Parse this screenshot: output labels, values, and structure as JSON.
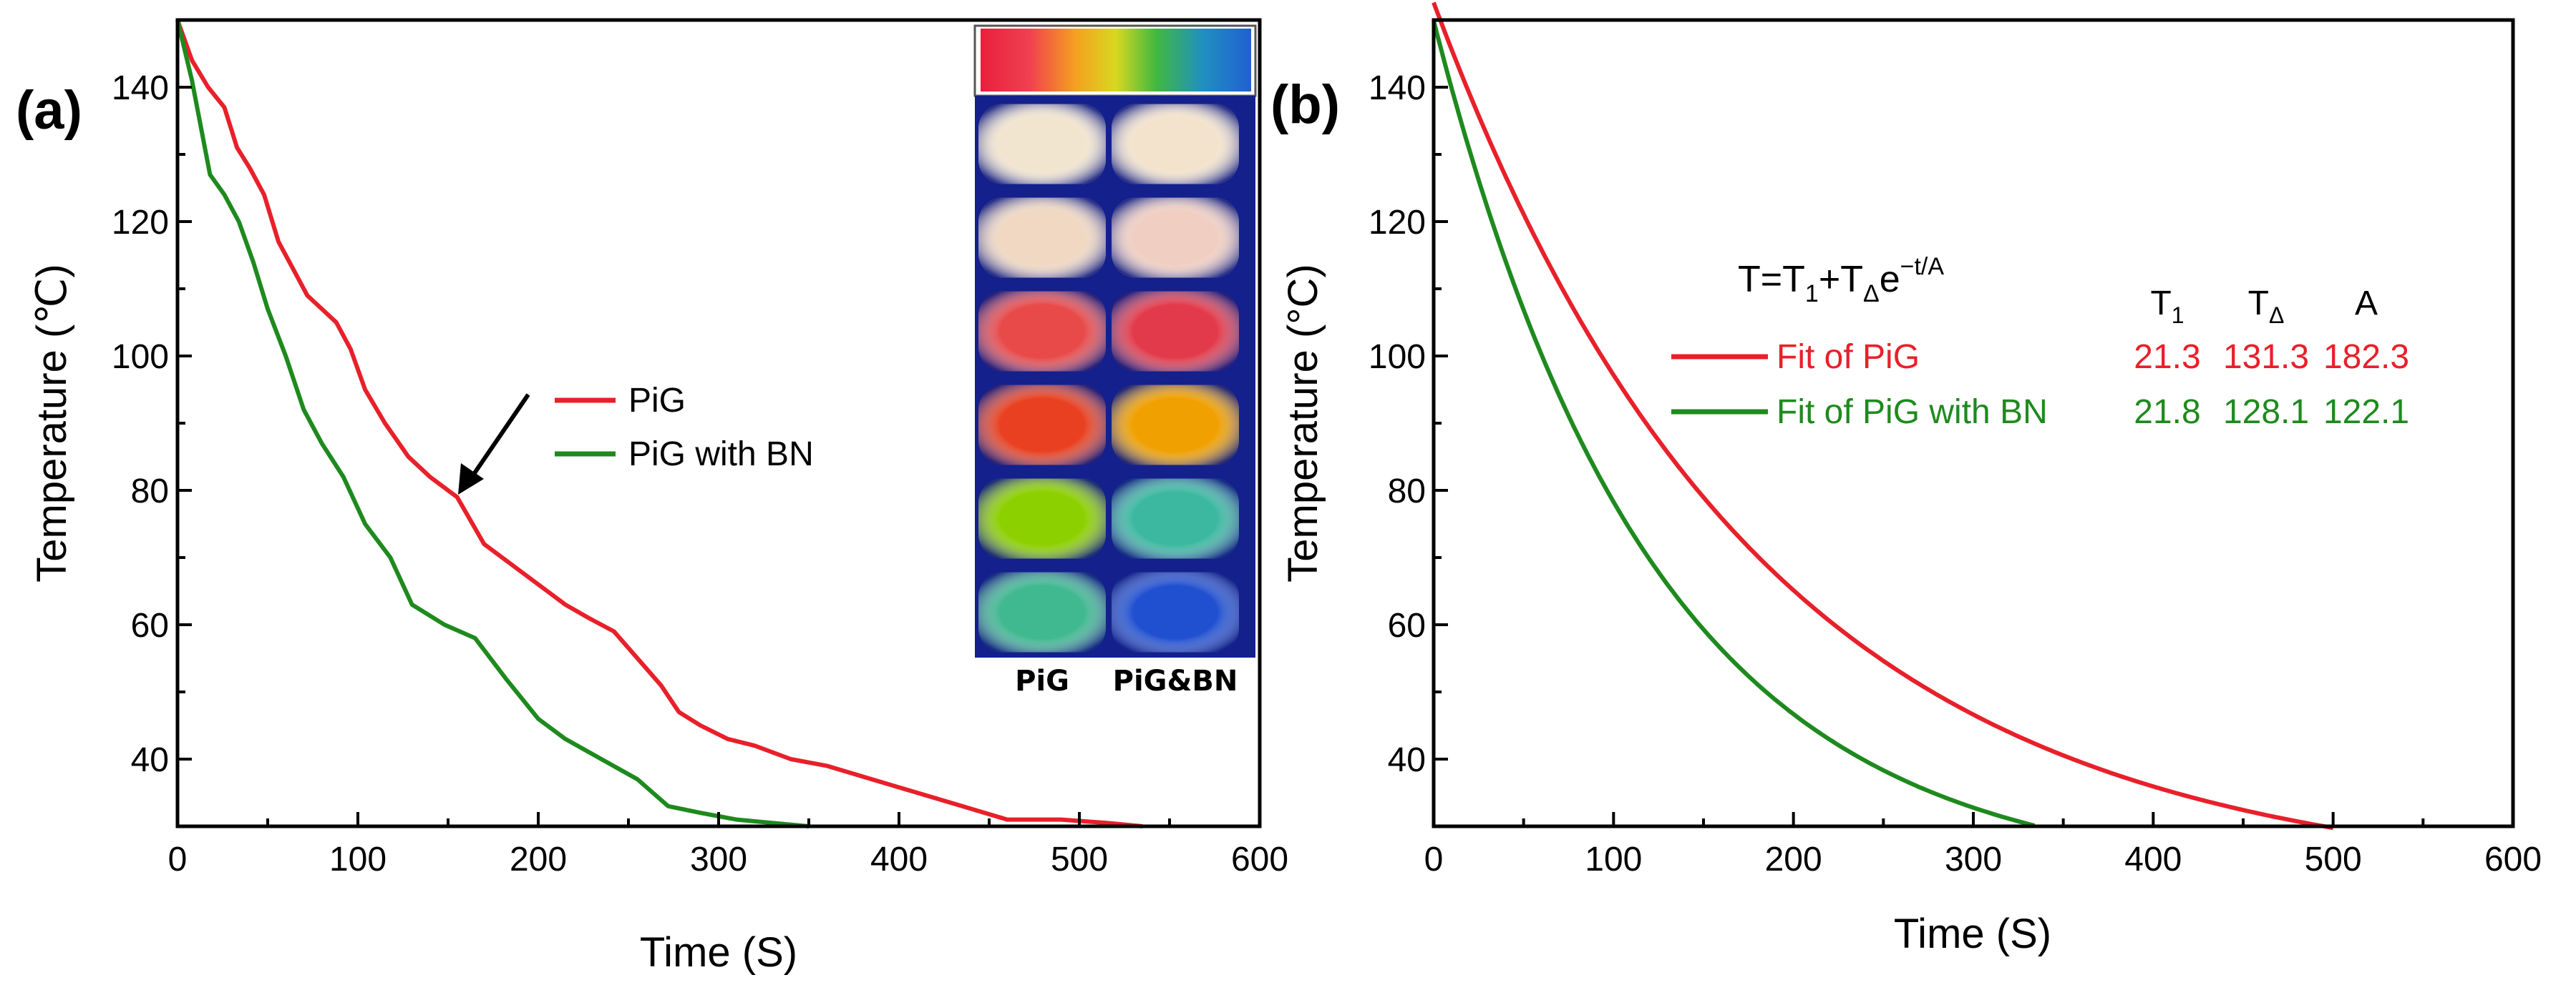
{
  "colors": {
    "pig": "#e8202a",
    "bn": "#1e8a1e",
    "axis": "#000000"
  },
  "chart_data": [
    {
      "panel": "(a)",
      "type": "line",
      "xlabel": "Time (S)",
      "ylabel": "Temperature (℃)",
      "xlim": [
        0,
        600
      ],
      "ylim": [
        30,
        150
      ],
      "xticks": [
        0,
        100,
        200,
        300,
        400,
        500,
        600
      ],
      "yticks": [
        40,
        60,
        80,
        100,
        120,
        140
      ],
      "legend": "center-right",
      "series": [
        {
          "name": "PiG",
          "color": "#e8202a",
          "x": [
            0,
            8,
            17,
            26,
            33,
            40,
            48,
            56,
            64,
            72,
            80,
            88,
            96,
            104,
            115,
            128,
            140,
            155,
            170,
            185,
            200,
            215,
            228,
            242,
            255,
            268,
            278,
            290,
            305,
            320,
            340,
            360,
            385,
            410,
            435,
            460,
            490,
            515,
            535
          ],
          "y": [
            150,
            144,
            140,
            137,
            131,
            128,
            124,
            117,
            113,
            109,
            107,
            105,
            101,
            95,
            90,
            85,
            82,
            79,
            72,
            69,
            66,
            63,
            61,
            59,
            55,
            51,
            47,
            45,
            43,
            42,
            40,
            39,
            37,
            35,
            33,
            31,
            31,
            30.5,
            30
          ]
        },
        {
          "name": "PiG with BN",
          "color": "#1e8a1e",
          "x": [
            0,
            8,
            18,
            26,
            34,
            42,
            50,
            60,
            70,
            80,
            92,
            104,
            118,
            130,
            148,
            165,
            182,
            200,
            215,
            235,
            255,
            272,
            290,
            310,
            330,
            350
          ],
          "y": [
            150,
            141,
            127,
            124,
            120,
            114,
            107,
            100,
            92,
            87,
            82,
            75,
            70,
            63,
            60,
            58,
            52,
            46,
            43,
            40,
            37,
            33,
            32,
            31,
            30.5,
            30
          ]
        }
      ],
      "annotations": [
        "arrow at PiG curve near t = 160 s"
      ],
      "inset": {
        "colorbar": "thermal scale (red to blue)",
        "column_labels": [
          "PiG",
          "PiG&BN"
        ],
        "rows": [
          [
            "#f2e5cf",
            "#f3e3cd"
          ],
          [
            "#f0d8c2",
            "#f0cfc2"
          ],
          [
            "#e84a4a",
            "#e23a4a"
          ],
          [
            "#e84020",
            "#f0a000"
          ],
          [
            "#8cd000",
            "#3cb8a0"
          ],
          [
            "#40b890",
            "#2050d0"
          ]
        ]
      }
    },
    {
      "panel": "(b)",
      "type": "line",
      "xlabel": "Time (S)",
      "ylabel": "Temperature (°C)",
      "xlim": [
        0,
        600
      ],
      "ylim": [
        30,
        150
      ],
      "xticks": [
        0,
        100,
        200,
        300,
        400,
        500,
        600
      ],
      "yticks": [
        40,
        60,
        80,
        100,
        120,
        140
      ],
      "equation": {
        "text_main": "T=T",
        "sub1": "1",
        "plus": "+T",
        "subD": "Δ",
        "e": "e",
        "exp": "−t/A"
      },
      "table_header": {
        "t1": "T",
        "t1_sub": "1",
        "td": "T",
        "td_sub": "Δ",
        "a": "A"
      },
      "legend": "upper-right",
      "series": [
        {
          "name": "Fit of PiG",
          "color": "#e8202a",
          "T1": "21.3",
          "TD": "131.3",
          "A": "182.3",
          "t_end": 500
        },
        {
          "name": "Fit of PiG with BN",
          "color": "#1e8a1e",
          "T1": "21.8",
          "TD": "128.1",
          "A": "122.1",
          "t_end": 335
        }
      ]
    }
  ]
}
